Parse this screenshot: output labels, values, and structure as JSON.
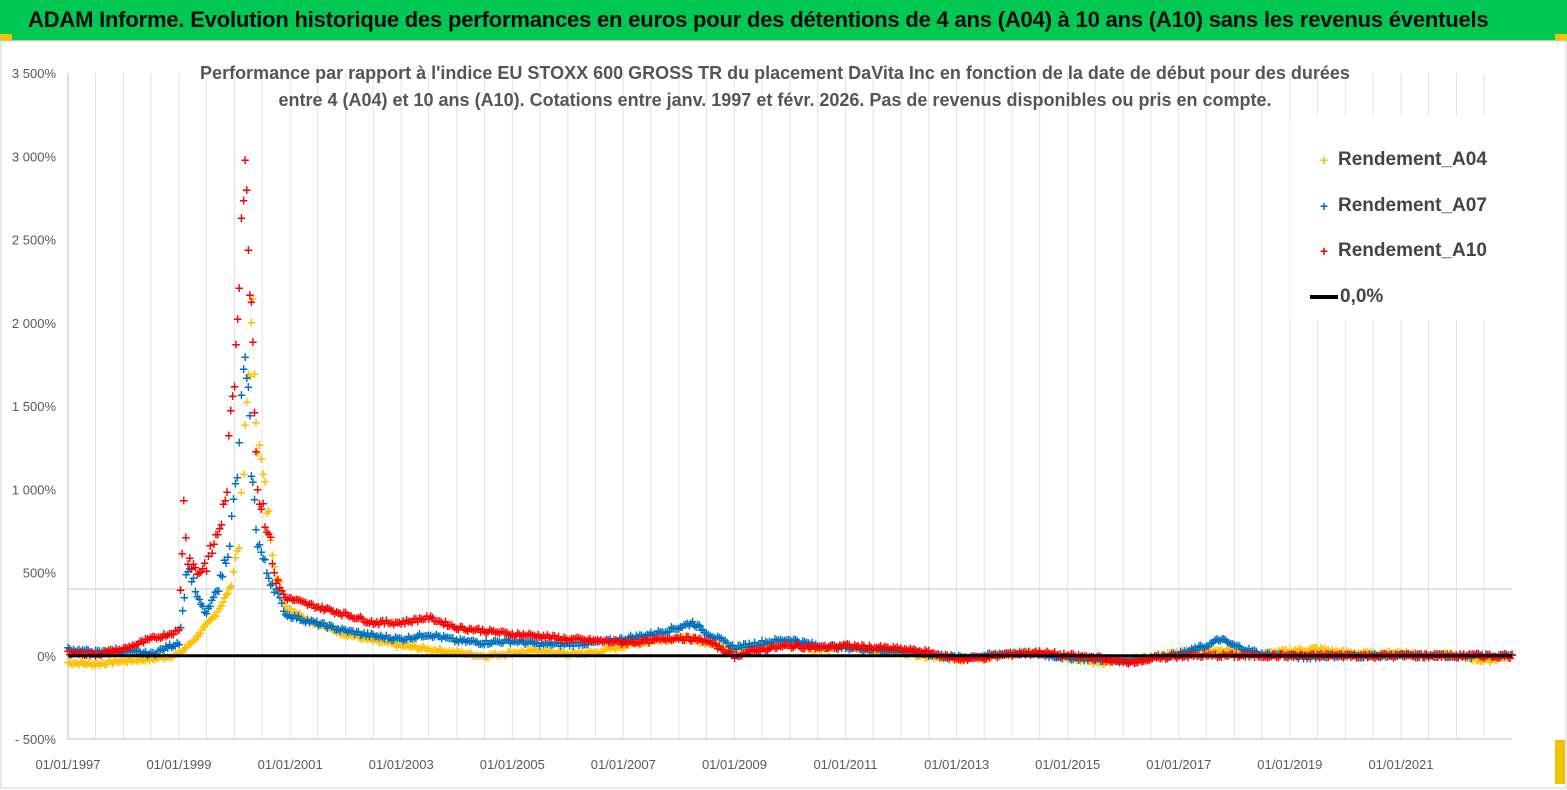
{
  "banner": {
    "title": "ADAM Informe. Evolution historique des performances en euros pour des détentions de 4 ans (A04) à 10 ans (A10) sans les revenus éventuels"
  },
  "colors": {
    "banner_bg": "#00c853",
    "a04": "#ffc000",
    "a07": "#0070c0",
    "a10": "#ff0000",
    "zero": "#000000"
  },
  "chart_data": {
    "type": "scatter",
    "title": "Performance par rapport à l'indice EU STOXX 600 GROSS TR  du placement DaVita Inc en fonction de la date de début pour des durées\nentre 4 (A04) et 10 ans (A10).  Cotations entre janv. 1997 et févr. 2026.  Pas de revenus disponibles ou pris en compte.",
    "xlabel": "",
    "ylabel": "",
    "x_range": [
      "01/01/1997",
      "01/01/2023"
    ],
    "x_ticks": [
      "01/01/1997",
      "01/01/1999",
      "01/01/2001",
      "01/01/2003",
      "01/01/2005",
      "01/01/2007",
      "01/01/2009",
      "01/01/2011",
      "01/01/2013",
      "01/01/2015",
      "01/01/2017",
      "01/01/2019",
      "01/01/2021"
    ],
    "y_range": [
      -500,
      3500
    ],
    "y_ticks": [
      {
        "value": -500,
        "label": "- 500%"
      },
      {
        "value": 0,
        "label": "0%"
      },
      {
        "value": 500,
        "label": "500%"
      },
      {
        "value": 1000,
        "label": "1 000%"
      },
      {
        "value": 1500,
        "label": "1 500%"
      },
      {
        "value": 2000,
        "label": "2 000%"
      },
      {
        "value": 2500,
        "label": "2 500%"
      },
      {
        "value": 3000,
        "label": "3 000%"
      },
      {
        "value": 3500,
        "label": "3 500%"
      }
    ],
    "grid": "vertical",
    "legend_position": "top-right",
    "series": [
      {
        "name": "Rendement_A04",
        "marker": "+",
        "color": "#ffc000",
        "x": [
          "01/01/1997",
          "01/07/1997",
          "01/01/1998",
          "01/07/1998",
          "01/01/1999",
          "01/03/1999",
          "01/06/1999",
          "01/09/1999",
          "01/12/1999",
          "01/02/2000",
          "01/03/2000",
          "01/04/2000",
          "01/05/2000",
          "01/06/2000",
          "01/08/2000",
          "01/10/2000",
          "01/12/2000",
          "01/06/2001",
          "01/01/2002",
          "01/07/2002",
          "01/01/2003",
          "01/07/2003",
          "01/01/2004",
          "01/07/2004",
          "01/01/2005",
          "01/07/2005",
          "01/01/2006",
          "01/07/2006",
          "01/01/2007",
          "01/07/2007",
          "01/01/2008",
          "01/07/2008",
          "01/01/2009",
          "01/07/2009",
          "01/01/2010",
          "01/07/2010",
          "01/01/2011",
          "01/07/2011",
          "01/01/2012",
          "01/07/2012",
          "01/01/2013",
          "01/07/2013",
          "01/01/2014",
          "01/07/2014",
          "01/01/2015",
          "01/07/2015",
          "01/01/2016",
          "01/07/2016",
          "01/01/2017",
          "01/07/2017",
          "01/01/2018",
          "01/07/2018",
          "01/01/2019",
          "01/07/2019",
          "01/01/2020",
          "01/07/2020",
          "01/01/2021",
          "01/07/2021",
          "01/01/2022",
          "01/07/2022",
          "01/01/2023"
        ],
        "y": [
          -40,
          -50,
          -30,
          -20,
          10,
          60,
          150,
          250,
          400,
          700,
          1100,
          1700,
          2000,
          1300,
          900,
          500,
          300,
          200,
          130,
          90,
          60,
          40,
          20,
          0,
          20,
          30,
          10,
          20,
          60,
          90,
          110,
          80,
          40,
          60,
          70,
          40,
          50,
          30,
          20,
          0,
          -20,
          -10,
          10,
          20,
          -10,
          -40,
          -30,
          -10,
          20,
          40,
          30,
          10,
          30,
          40,
          20,
          10,
          20,
          10,
          0,
          -30,
          0
        ]
      },
      {
        "name": "Rendement_A07",
        "marker": "+",
        "color": "#0070c0",
        "x": [
          "01/01/1997",
          "01/07/1997",
          "01/01/1998",
          "01/07/1998",
          "01/01/1999",
          "01/03/1999",
          "01/05/1999",
          "01/07/1999",
          "01/10/1999",
          "01/12/1999",
          "01/02/2000",
          "01/03/2000",
          "01/04/2000",
          "01/05/2000",
          "01/06/2000",
          "01/08/2000",
          "01/10/2000",
          "01/12/2000",
          "01/06/2001",
          "01/01/2002",
          "01/07/2002",
          "01/01/2003",
          "01/07/2003",
          "01/01/2004",
          "01/07/2004",
          "01/01/2005",
          "01/07/2005",
          "01/01/2006",
          "01/07/2006",
          "01/01/2007",
          "01/07/2007",
          "01/01/2008",
          "01/04/2008",
          "01/07/2008",
          "01/01/2009",
          "01/07/2009",
          "01/01/2010",
          "01/07/2010",
          "01/01/2011",
          "01/07/2011",
          "01/01/2012",
          "01/07/2012",
          "01/01/2013",
          "01/07/2013",
          "01/01/2014",
          "01/07/2014",
          "01/01/2015",
          "01/07/2015",
          "01/01/2016",
          "01/07/2016",
          "01/01/2017",
          "01/07/2017",
          "01/10/2017",
          "01/01/2018",
          "01/07/2018",
          "01/01/2019",
          "01/04/2019",
          "01/07/2019",
          "01/01/2020",
          "01/07/2020",
          "01/01/2021",
          "01/07/2021",
          "01/01/2022",
          "01/07/2022",
          "01/01/2023"
        ],
        "y": [
          40,
          20,
          30,
          10,
          80,
          550,
          350,
          250,
          450,
          700,
          1200,
          1800,
          1500,
          1000,
          700,
          500,
          400,
          250,
          200,
          150,
          120,
          100,
          130,
          90,
          80,
          90,
          70,
          70,
          80,
          100,
          130,
          170,
          200,
          140,
          50,
          80,
          100,
          60,
          50,
          40,
          30,
          10,
          -10,
          0,
          20,
          10,
          -10,
          -20,
          -30,
          -10,
          10,
          60,
          100,
          60,
          10,
          0,
          -10,
          0,
          0,
          0,
          0,
          0,
          0,
          0,
          0
        ]
      },
      {
        "name": "Rendement_A10",
        "marker": "+",
        "color": "#ff0000",
        "x": [
          "01/01/1997",
          "01/07/1997",
          "01/01/1998",
          "01/07/1998",
          "01/01/1999",
          "01/02/1999",
          "01/03/1999",
          "01/05/1999",
          "01/07/1999",
          "01/09/1999",
          "01/11/1999",
          "01/01/2000",
          "01/02/2000",
          "01/03/2000",
          "01/04/2000",
          "01/05/2000",
          "01/06/2000",
          "01/08/2000",
          "01/10/2000",
          "01/12/2000",
          "01/06/2001",
          "01/01/2002",
          "01/07/2002",
          "01/01/2003",
          "01/07/2003",
          "01/01/2004",
          "01/07/2004",
          "01/01/2005",
          "01/07/2005",
          "01/01/2006",
          "01/07/2006",
          "01/01/2007",
          "01/07/2007",
          "01/01/2008",
          "01/07/2008",
          "01/01/2009",
          "01/07/2009",
          "01/01/2010",
          "01/07/2010",
          "01/01/2011",
          "01/07/2011",
          "01/01/2012",
          "01/07/2012",
          "01/01/2013",
          "01/07/2013",
          "01/01/2014",
          "01/07/2014",
          "01/01/2015",
          "01/07/2015",
          "01/01/2016",
          "01/07/2016",
          "01/01/2017",
          "01/07/2017",
          "01/01/2018",
          "01/07/2018",
          "01/01/2019",
          "01/07/2019",
          "01/01/2020",
          "01/07/2020",
          "01/01/2021",
          "01/07/2021",
          "01/01/2022",
          "01/07/2022",
          "01/01/2023"
        ],
        "y": [
          20,
          10,
          40,
          100,
          150,
          900,
          600,
          500,
          550,
          700,
          900,
          1700,
          2400,
          2900,
          2600,
          1900,
          1000,
          800,
          450,
          350,
          300,
          250,
          200,
          200,
          230,
          170,
          150,
          130,
          120,
          100,
          90,
          80,
          90,
          110,
          90,
          0,
          40,
          60,
          50,
          60,
          50,
          40,
          20,
          -20,
          -10,
          10,
          20,
          0,
          -10,
          -40,
          -20,
          0,
          0,
          0,
          0,
          0,
          0,
          0,
          0,
          0,
          0,
          0,
          0,
          0
        ]
      }
    ],
    "reference_line": {
      "name": "0,0%",
      "value": 0,
      "color": "#000000"
    }
  }
}
